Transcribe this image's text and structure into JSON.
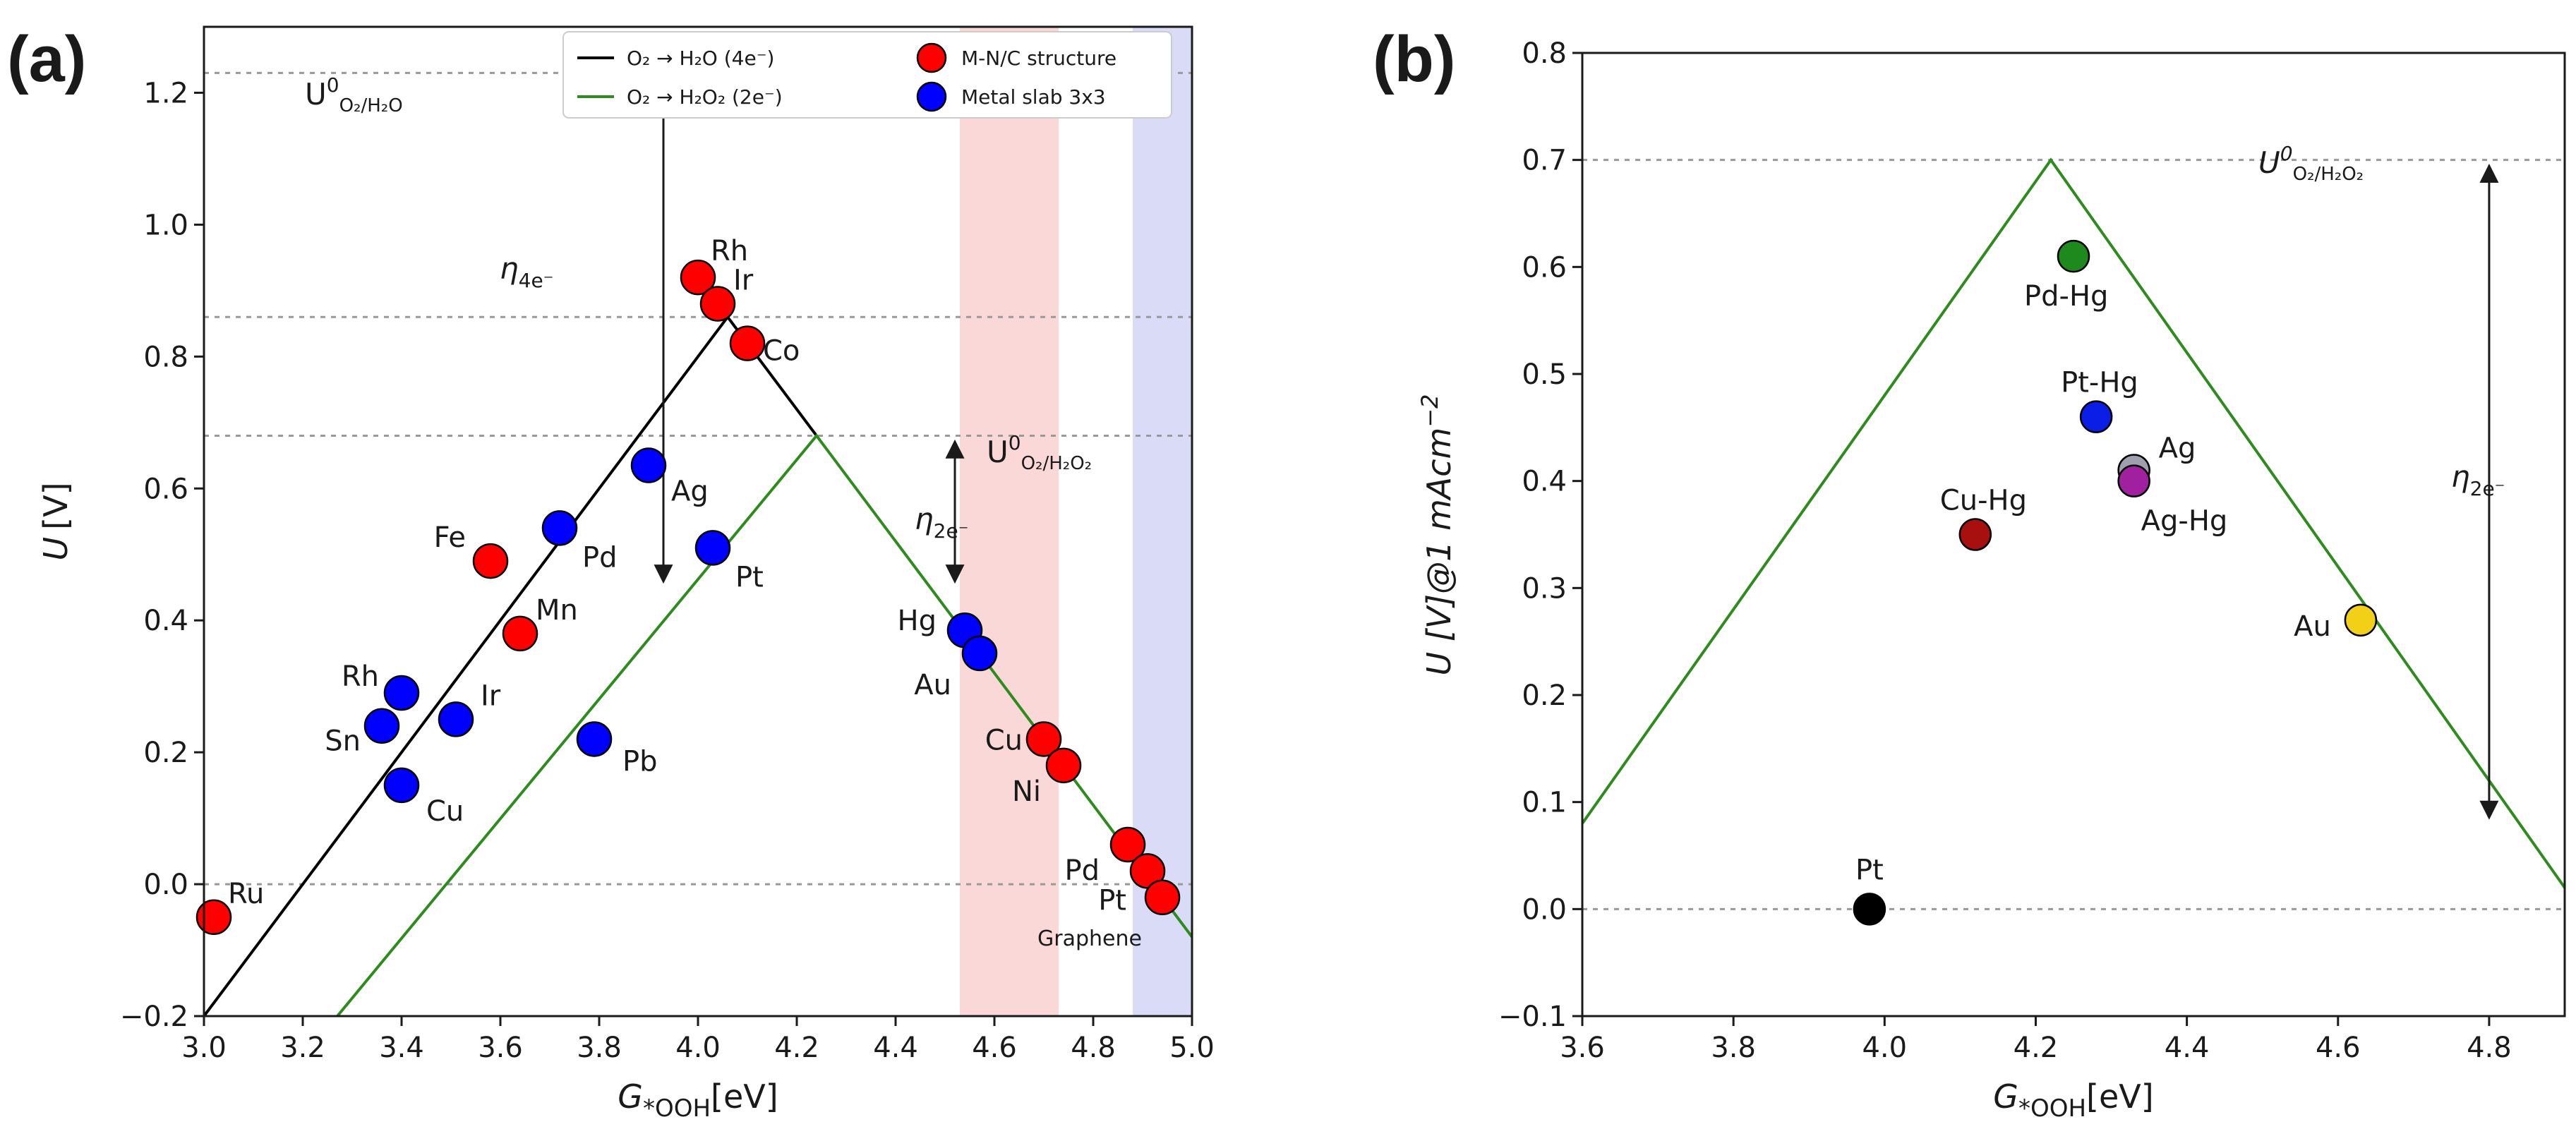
{
  "panels": [
    {
      "id": "a",
      "label": "(a)",
      "xlabel_main": "G",
      "xlabel_sub": "*OOH",
      "xlabel_unit": "[eV]",
      "ylabel_main": "U",
      "ylabel_unit": "[V]",
      "xlim": [
        3.0,
        5.0
      ],
      "ylim": [
        -0.2,
        1.3
      ],
      "xticks": [
        3.0,
        3.2,
        3.4,
        3.6,
        3.8,
        4.0,
        4.2,
        4.4,
        4.6,
        4.8,
        5.0
      ],
      "xtick_labels": [
        "3.0",
        "3.2",
        "3.4",
        "3.6",
        "3.8",
        "4.0",
        "4.2",
        "4.4",
        "4.6",
        "4.8",
        "5.0"
      ],
      "yticks": [
        -0.2,
        0.0,
        0.2,
        0.4,
        0.6,
        0.8,
        1.0,
        1.2
      ],
      "ytick_labels": [
        "−0.2",
        "0.0",
        "0.2",
        "0.4",
        "0.6",
        "0.8",
        "1.0",
        "1.2"
      ],
      "legend": {
        "position": "top-center",
        "entries": [
          {
            "kind": "line",
            "color": "#000000",
            "text": "O₂ → H₂O (4e⁻)"
          },
          {
            "kind": "line",
            "color": "#2e8b1e",
            "text": "O₂ → H₂O₂ (2e⁻)"
          },
          {
            "kind": "marker",
            "color": "#ff0000",
            "text": "M-N/C structure"
          },
          {
            "kind": "marker",
            "color": "#0000ff",
            "text": "Metal slab 3x3"
          }
        ]
      },
      "annotations": {
        "u0_4e_main": "U",
        "u0_4e_sup": "0",
        "u0_4e_sub": "O₂/H₂O",
        "u0_2e_main": "U",
        "u0_2e_sup": "0",
        "u0_2e_sub": "O₂/H₂O₂",
        "eta4_main": "η",
        "eta4_sub": "4e⁻",
        "eta2_main": "η",
        "eta2_sub": "2e⁻",
        "graphene": "Graphene"
      }
    },
    {
      "id": "b",
      "label": "(b)",
      "xlabel_main": "G",
      "xlabel_sub": "*OOH",
      "xlabel_unit": "[eV]",
      "ylabel_text": "U [V]@1 mAcm",
      "ylabel_sup": "−2",
      "xlim": [
        3.6,
        4.9
      ],
      "ylim": [
        -0.1,
        0.8
      ],
      "xticks": [
        3.6,
        3.8,
        4.0,
        4.2,
        4.4,
        4.6,
        4.8
      ],
      "xtick_labels": [
        "3.6",
        "3.8",
        "4.0",
        "4.2",
        "4.4",
        "4.6",
        "4.8"
      ],
      "yticks": [
        -0.1,
        0.0,
        0.1,
        0.2,
        0.3,
        0.4,
        0.5,
        0.6,
        0.7,
        0.8
      ],
      "ytick_labels": [
        "−0.1",
        "0.0",
        "0.1",
        "0.2",
        "0.3",
        "0.4",
        "0.5",
        "0.6",
        "0.7",
        "0.8"
      ],
      "annotations": {
        "u0_main": "U",
        "u0_sup": "0",
        "u0_sub": "O₂/H₂O₂",
        "eta2_main": "η",
        "eta2_sub": "2e⁻"
      }
    }
  ],
  "chart_data": [
    {
      "type": "scatter",
      "panel": "a",
      "xlim": [
        3.0,
        5.0
      ],
      "ylim": [
        -0.2,
        1.3
      ],
      "grid": false,
      "volcano_lines": [
        {
          "name": "O₂ → H₂O (4e⁻)",
          "color": "#000000",
          "points": [
            [
              3.0,
              -0.2
            ],
            [
              4.06,
              0.86
            ],
            [
              4.24,
              0.68
            ]
          ]
        },
        {
          "name": "O₂ → H₂O₂ (2e⁻)",
          "color": "#2e8b1e",
          "points": [
            [
              3.27,
              -0.2
            ],
            [
              4.24,
              0.68
            ],
            [
              5.0,
              -0.08
            ]
          ]
        }
      ],
      "reference_lines": [
        1.23,
        0.86,
        0.68,
        0.0
      ],
      "shaded_regions": [
        {
          "x": [
            4.53,
            4.73
          ],
          "color": "#f8c8c8"
        },
        {
          "x": [
            4.88,
            5.0
          ],
          "color": "#c9ccf4"
        }
      ],
      "overpotential_arrows": [
        {
          "label": "η4e⁻",
          "x": 3.93,
          "from": 1.23,
          "to": 0.45
        },
        {
          "label": "η2e⁻",
          "x": 4.52,
          "from": 0.68,
          "to": 0.45
        }
      ],
      "series": [
        {
          "name": "M-N/C structure",
          "color": "#ff0000",
          "points": [
            {
              "label": "Ru",
              "x": 3.02,
              "y": -0.05
            },
            {
              "label": "Fe",
              "x": 3.58,
              "y": 0.49
            },
            {
              "label": "Mn",
              "x": 3.64,
              "y": 0.38
            },
            {
              "label": "Rh",
              "x": 4.0,
              "y": 0.92
            },
            {
              "label": "Ir",
              "x": 4.04,
              "y": 0.88
            },
            {
              "label": "Co",
              "x": 4.1,
              "y": 0.82
            },
            {
              "label": "Cu",
              "x": 4.7,
              "y": 0.22
            },
            {
              "label": "Ni",
              "x": 4.74,
              "y": 0.18
            },
            {
              "label": "Pd",
              "x": 4.87,
              "y": 0.06
            },
            {
              "label": "Pt",
              "x": 4.91,
              "y": 0.02
            },
            {
              "label": "",
              "x": 4.94,
              "y": -0.02
            }
          ]
        },
        {
          "name": "Metal slab 3x3",
          "color": "#0000ff",
          "points": [
            {
              "label": "Rh",
              "x": 3.4,
              "y": 0.29
            },
            {
              "label": "Sn",
              "x": 3.36,
              "y": 0.24
            },
            {
              "label": "Ir",
              "x": 3.51,
              "y": 0.25
            },
            {
              "label": "Cu",
              "x": 3.4,
              "y": 0.15
            },
            {
              "label": "Pd",
              "x": 3.72,
              "y": 0.54
            },
            {
              "label": "Ag",
              "x": 3.9,
              "y": 0.635
            },
            {
              "label": "Pt",
              "x": 4.03,
              "y": 0.51
            },
            {
              "label": "Pb",
              "x": 3.79,
              "y": 0.22
            },
            {
              "label": "Hg",
              "x": 4.54,
              "y": 0.385
            },
            {
              "label": "Au",
              "x": 4.57,
              "y": 0.35
            }
          ]
        }
      ]
    },
    {
      "type": "scatter",
      "panel": "b",
      "xlim": [
        3.6,
        4.9
      ],
      "ylim": [
        -0.1,
        0.8
      ],
      "grid": false,
      "volcano_lines": [
        {
          "name": "",
          "color": "#2e8b1e",
          "points": [
            [
              3.6,
              0.08
            ],
            [
              4.22,
              0.7
            ],
            [
              4.9,
              0.02
            ]
          ]
        }
      ],
      "reference_lines": [
        0.7,
        0.0
      ],
      "overpotential_arrows": [
        {
          "label": "η2e⁻",
          "x": 4.8,
          "from": 0.7,
          "to": 0.08
        }
      ],
      "series": [
        {
          "name": "",
          "points": [
            {
              "label": "Pd-Hg",
              "x": 4.25,
              "y": 0.61,
              "color": "#1e8a1e"
            },
            {
              "label": "Pt-Hg",
              "x": 4.28,
              "y": 0.46,
              "color": "#0a1ee6"
            },
            {
              "label": "Ag",
              "x": 4.33,
              "y": 0.41,
              "color": "#9f9fb0"
            },
            {
              "label": "Ag-Hg",
              "x": 4.33,
              "y": 0.4,
              "color": "#a020a0"
            },
            {
              "label": "Cu-Hg",
              "x": 4.12,
              "y": 0.35,
              "color": "#a81010"
            },
            {
              "label": "Au",
              "x": 4.63,
              "y": 0.27,
              "color": "#f2d018"
            },
            {
              "label": "Pt",
              "x": 3.98,
              "y": 0.0,
              "color": "#000000"
            }
          ]
        }
      ]
    }
  ]
}
